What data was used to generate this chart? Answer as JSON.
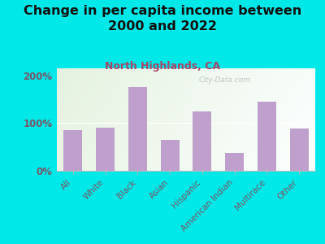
{
  "title": "Change in per capita income between\n2000 and 2022",
  "subtitle": "North Highlands, CA",
  "categories": [
    "All",
    "White",
    "Black",
    "Asian",
    "Hispanic",
    "American Indian",
    "Multirace",
    "Other"
  ],
  "values": [
    85,
    90,
    175,
    65,
    125,
    38,
    145,
    88
  ],
  "bar_color": "#bf9fcc",
  "background_outer": "#00e8e8",
  "title_color": "#111111",
  "subtitle_color": "#aa4466",
  "tick_label_color": "#7a5566",
  "ytick_label_color": "#7a5566",
  "watermark": "City-Data.com",
  "ylim": [
    0,
    215
  ],
  "yticks": [
    0,
    100,
    200
  ],
  "ytick_labels": [
    "0%",
    "100%",
    "200%"
  ],
  "title_fontsize": 11.5,
  "subtitle_fontsize": 9,
  "bar_tick_fontsize": 7.5,
  "ytick_fontsize": 8.5
}
